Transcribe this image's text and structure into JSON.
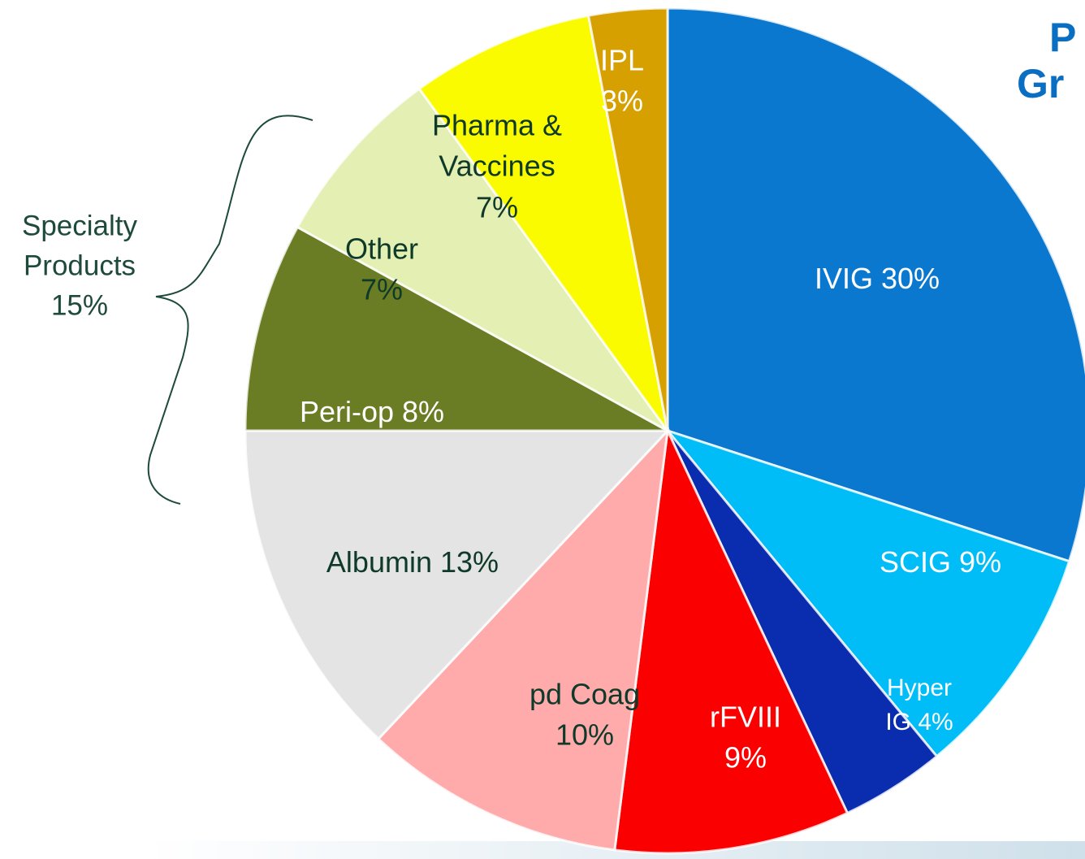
{
  "chart_data": {
    "type": "pie",
    "title_lines": [
      "P",
      "Gr"
    ],
    "categories": [
      "IVIG",
      "SCIG",
      "Hyper IG",
      "rFVIII",
      "pd Coag",
      "Albumin",
      "Peri-op",
      "Other",
      "Pharma & Vaccines",
      "IPL"
    ],
    "values": [
      30,
      9,
      4,
      9,
      10,
      13,
      8,
      7,
      7,
      3
    ],
    "value_labels": [
      "30%",
      "9%",
      "4%",
      "9%",
      "10%",
      "13%",
      "8%",
      "7%",
      "7%",
      "3%"
    ],
    "colors": [
      "#0b78cf",
      "#00bdf7",
      "#0a2db0",
      "#fb0000",
      "#ffabab",
      "#e4e4e4",
      "#6a7d24",
      "#e3efb3",
      "#fbfb00",
      "#d5a000"
    ],
    "annotation": "Specialty Products 15%"
  }
}
